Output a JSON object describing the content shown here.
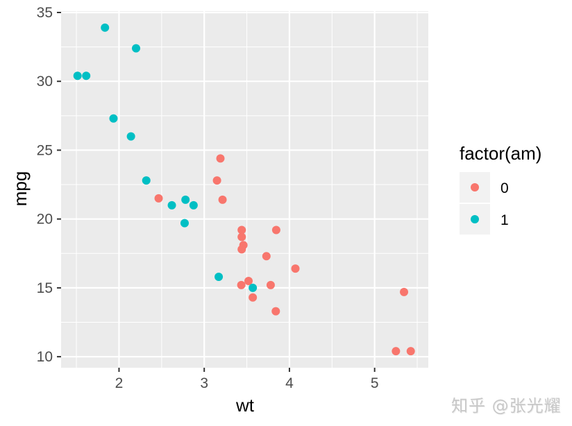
{
  "chart_data": {
    "type": "scatter",
    "title": "",
    "xlabel": "wt",
    "ylabel": "mpg",
    "xlim": [
      1.32,
      5.63
    ],
    "ylim": [
      9.2,
      35.1
    ],
    "x_ticks": [
      2,
      3,
      4,
      5
    ],
    "y_ticks": [
      10,
      15,
      20,
      25,
      30,
      35
    ],
    "grid": true,
    "legend": {
      "title": "factor(am)",
      "position": "right",
      "entries": [
        {
          "label": "0",
          "color": "#F8766D"
        },
        {
          "label": "1",
          "color": "#00BFC4"
        }
      ]
    },
    "series": [
      {
        "name": "0",
        "color": "#F8766D",
        "points": [
          {
            "x": 3.215,
            "y": 21.4
          },
          {
            "x": 3.44,
            "y": 18.7
          },
          {
            "x": 3.46,
            "y": 18.1
          },
          {
            "x": 3.57,
            "y": 14.3
          },
          {
            "x": 3.19,
            "y": 24.4
          },
          {
            "x": 3.15,
            "y": 22.8
          },
          {
            "x": 3.44,
            "y": 19.2
          },
          {
            "x": 3.44,
            "y": 17.8
          },
          {
            "x": 4.07,
            "y": 16.4
          },
          {
            "x": 3.73,
            "y": 17.3
          },
          {
            "x": 3.78,
            "y": 15.2
          },
          {
            "x": 5.25,
            "y": 10.4
          },
          {
            "x": 5.424,
            "y": 10.4
          },
          {
            "x": 5.345,
            "y": 14.7
          },
          {
            "x": 2.465,
            "y": 21.5
          },
          {
            "x": 3.52,
            "y": 15.5
          },
          {
            "x": 3.435,
            "y": 15.2
          },
          {
            "x": 3.84,
            "y": 13.3
          },
          {
            "x": 3.845,
            "y": 19.2
          }
        ]
      },
      {
        "name": "1",
        "color": "#00BFC4",
        "points": [
          {
            "x": 2.62,
            "y": 21.0
          },
          {
            "x": 2.875,
            "y": 21.0
          },
          {
            "x": 2.32,
            "y": 22.8
          },
          {
            "x": 2.2,
            "y": 32.4
          },
          {
            "x": 1.615,
            "y": 30.4
          },
          {
            "x": 1.835,
            "y": 33.9
          },
          {
            "x": 1.935,
            "y": 27.3
          },
          {
            "x": 2.14,
            "y": 26.0
          },
          {
            "x": 1.513,
            "y": 30.4
          },
          {
            "x": 3.17,
            "y": 15.8
          },
          {
            "x": 2.77,
            "y": 19.7
          },
          {
            "x": 3.57,
            "y": 15.0
          },
          {
            "x": 2.78,
            "y": 21.4
          }
        ]
      }
    ]
  },
  "watermark": "知乎 @张光耀"
}
